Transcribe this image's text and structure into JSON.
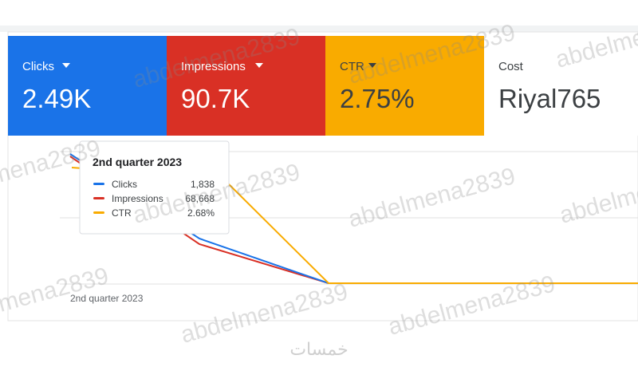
{
  "metrics": [
    {
      "label": "Clicks",
      "value": "2.49K"
    },
    {
      "label": "Impressions",
      "value": "90.7K"
    },
    {
      "label": "CTR",
      "value": "2.75%"
    },
    {
      "label": "Cost",
      "value": "Riyal765"
    }
  ],
  "chart": {
    "x_label": "2nd quarter 2023"
  },
  "tooltip": {
    "title": "2nd quarter 2023",
    "rows": [
      {
        "name": "Clicks",
        "value": "1,838"
      },
      {
        "name": "Impressions",
        "value": "68,668"
      },
      {
        "name": "CTR",
        "value": "2.68%"
      }
    ]
  },
  "watermark": "abdelmena2839",
  "footer_logo": "خمسات"
}
